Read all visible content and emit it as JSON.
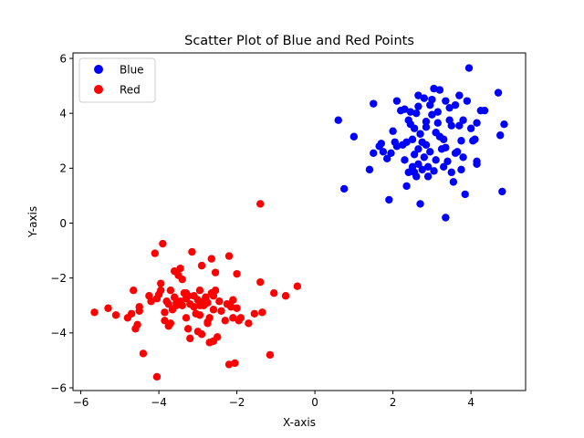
{
  "chart_data": {
    "type": "scatter",
    "title": "Scatter Plot of Blue and Red Points",
    "xlabel": "X-axis",
    "ylabel": "Y-axis",
    "xlim": [
      -6.2,
      5.4
    ],
    "ylim": [
      -6.1,
      6.2
    ],
    "xticks": [
      -6,
      -4,
      -2,
      0,
      2,
      4
    ],
    "yticks": [
      -6,
      -4,
      -2,
      0,
      2,
      4,
      6
    ],
    "grid": false,
    "legend_position": "top-left",
    "series": [
      {
        "name": "Blue",
        "color": "#0000ff",
        "points": [
          [
            0.6,
            3.75
          ],
          [
            0.75,
            1.25
          ],
          [
            1.0,
            3.15
          ],
          [
            1.4,
            1.95
          ],
          [
            1.5,
            2.55
          ],
          [
            1.5,
            4.35
          ],
          [
            1.65,
            2.8
          ],
          [
            1.7,
            2.9
          ],
          [
            1.75,
            2.6
          ],
          [
            1.85,
            2.35
          ],
          [
            1.9,
            0.85
          ],
          [
            1.95,
            2.55
          ],
          [
            2.0,
            3.35
          ],
          [
            2.05,
            2.95
          ],
          [
            2.1,
            4.45
          ],
          [
            2.1,
            2.8
          ],
          [
            2.25,
            2.85
          ],
          [
            2.3,
            4.15
          ],
          [
            2.35,
            2.95
          ],
          [
            2.35,
            1.35
          ],
          [
            2.4,
            1.85
          ],
          [
            2.4,
            3.75
          ],
          [
            2.45,
            4.05
          ],
          [
            2.5,
            2.05
          ],
          [
            2.5,
            3.05
          ],
          [
            2.55,
            3.45
          ],
          [
            2.55,
            2.5
          ],
          [
            2.6,
            1.7
          ],
          [
            2.65,
            2.15
          ],
          [
            2.65,
            2.7
          ],
          [
            2.65,
            4.25
          ],
          [
            2.65,
            4.65
          ],
          [
            2.7,
            0.7
          ],
          [
            2.7,
            3.25
          ],
          [
            2.75,
            1.95
          ],
          [
            2.8,
            4.55
          ],
          [
            2.85,
            3.7
          ],
          [
            2.85,
            3.5
          ],
          [
            2.85,
            2.85
          ],
          [
            2.9,
            2.05
          ],
          [
            2.95,
            4.3
          ],
          [
            2.95,
            2.6
          ],
          [
            3.0,
            4.5
          ],
          [
            3.05,
            4.9
          ],
          [
            3.05,
            1.9
          ],
          [
            3.1,
            2.3
          ],
          [
            3.15,
            3.65
          ],
          [
            3.15,
            4.05
          ],
          [
            3.2,
            4.85
          ],
          [
            3.2,
            3.15
          ],
          [
            3.25,
            2.7
          ],
          [
            3.3,
            3.05
          ],
          [
            3.3,
            2.05
          ],
          [
            3.35,
            0.2
          ],
          [
            3.35,
            4.45
          ],
          [
            3.4,
            2.25
          ],
          [
            3.45,
            3.75
          ],
          [
            3.45,
            4.2
          ],
          [
            3.5,
            1.85
          ],
          [
            3.5,
            3.55
          ],
          [
            3.55,
            1.5
          ],
          [
            3.6,
            4.3
          ],
          [
            3.65,
            2.6
          ],
          [
            3.7,
            3.55
          ],
          [
            3.7,
            4.65
          ],
          [
            3.75,
            3.0
          ],
          [
            3.75,
            1.95
          ],
          [
            3.8,
            3.75
          ],
          [
            3.8,
            2.4
          ],
          [
            3.85,
            1.05
          ],
          [
            3.9,
            4.45
          ],
          [
            3.95,
            5.65
          ],
          [
            4.0,
            3.45
          ],
          [
            4.05,
            3.0
          ],
          [
            4.1,
            3.05
          ],
          [
            4.15,
            3.65
          ],
          [
            4.15,
            2.25
          ],
          [
            4.15,
            2.15
          ],
          [
            4.25,
            4.1
          ],
          [
            4.35,
            4.1
          ],
          [
            4.7,
            4.75
          ],
          [
            4.75,
            3.2
          ],
          [
            4.8,
            1.15
          ],
          [
            4.85,
            3.6
          ],
          [
            2.2,
            4.1
          ],
          [
            2.45,
            3.6
          ],
          [
            2.6,
            4.0
          ],
          [
            3.0,
            3.95
          ],
          [
            2.8,
            2.4
          ],
          [
            2.3,
            2.3
          ],
          [
            2.55,
            1.85
          ],
          [
            3.35,
            2.75
          ],
          [
            3.6,
            2.55
          ],
          [
            2.9,
            1.7
          ],
          [
            3.1,
            3.3
          ],
          [
            2.75,
            2.95
          ]
        ]
      },
      {
        "name": "Red",
        "color": "#ff0000",
        "points": [
          [
            -5.65,
            -3.25
          ],
          [
            -5.3,
            -3.1
          ],
          [
            -5.1,
            -3.35
          ],
          [
            -4.8,
            -3.45
          ],
          [
            -4.7,
            -3.3
          ],
          [
            -4.65,
            -2.45
          ],
          [
            -4.6,
            -3.85
          ],
          [
            -4.55,
            -3.7
          ],
          [
            -4.5,
            -3.05
          ],
          [
            -4.5,
            -3.2
          ],
          [
            -4.4,
            -4.75
          ],
          [
            -4.2,
            -2.85
          ],
          [
            -4.1,
            -1.1
          ],
          [
            -4.05,
            -5.6
          ],
          [
            -4.05,
            -2.75
          ],
          [
            -3.95,
            -2.2
          ],
          [
            -3.95,
            -2.45
          ],
          [
            -3.9,
            -0.75
          ],
          [
            -3.85,
            -3.25
          ],
          [
            -3.85,
            -3.55
          ],
          [
            -3.8,
            -2.85
          ],
          [
            -3.75,
            -3.75
          ],
          [
            -3.75,
            -2.95
          ],
          [
            -3.7,
            -3.65
          ],
          [
            -3.7,
            -2.45
          ],
          [
            -3.65,
            -3.15
          ],
          [
            -3.6,
            -1.75
          ],
          [
            -3.55,
            -2.9
          ],
          [
            -3.5,
            -1.9
          ],
          [
            -3.45,
            -1.65
          ],
          [
            -3.4,
            -2.05
          ],
          [
            -3.4,
            -3.0
          ],
          [
            -3.35,
            -2.55
          ],
          [
            -3.3,
            -3.45
          ],
          [
            -3.3,
            -2.75
          ],
          [
            -3.25,
            -3.85
          ],
          [
            -3.2,
            -4.2
          ],
          [
            -3.2,
            -2.95
          ],
          [
            -3.15,
            -1.05
          ],
          [
            -3.1,
            -2.65
          ],
          [
            -3.05,
            -3.3
          ],
          [
            -3.0,
            -3.95
          ],
          [
            -2.95,
            -2.45
          ],
          [
            -2.95,
            -3.0
          ],
          [
            -2.9,
            -1.55
          ],
          [
            -2.9,
            -4.05
          ],
          [
            -2.85,
            -2.85
          ],
          [
            -2.8,
            -2.75
          ],
          [
            -2.75,
            -3.6
          ],
          [
            -2.75,
            -3.65
          ],
          [
            -2.7,
            -3.45
          ],
          [
            -2.7,
            -4.35
          ],
          [
            -2.65,
            -1.3
          ],
          [
            -2.65,
            -2.55
          ],
          [
            -2.6,
            -4.3
          ],
          [
            -2.6,
            -3.15
          ],
          [
            -2.55,
            -2.45
          ],
          [
            -2.55,
            -1.8
          ],
          [
            -2.5,
            -4.15
          ],
          [
            -2.45,
            -2.85
          ],
          [
            -2.3,
            -3.55
          ],
          [
            -2.25,
            -2.95
          ],
          [
            -2.2,
            -5.15
          ],
          [
            -2.2,
            -1.2
          ],
          [
            -2.1,
            -2.8
          ],
          [
            -2.1,
            -3.45
          ],
          [
            -2.05,
            -5.1
          ],
          [
            -2.0,
            -1.85
          ],
          [
            -2.0,
            -3.1
          ],
          [
            -1.95,
            -3.55
          ],
          [
            -1.9,
            -3.45
          ],
          [
            -1.7,
            -3.65
          ],
          [
            -1.55,
            -3.3
          ],
          [
            -1.4,
            -2.15
          ],
          [
            -1.4,
            0.7
          ],
          [
            -1.35,
            -3.25
          ],
          [
            -1.15,
            -4.8
          ],
          [
            -1.05,
            -2.55
          ],
          [
            -0.75,
            -2.65
          ],
          [
            -0.45,
            -2.3
          ],
          [
            -3.45,
            -2.85
          ],
          [
            -3.1,
            -3.05
          ],
          [
            -3.25,
            -2.65
          ],
          [
            -2.85,
            -3.0
          ],
          [
            -2.95,
            -3.35
          ],
          [
            -2.8,
            -2.7
          ],
          [
            -3.0,
            -2.8
          ],
          [
            -3.6,
            -2.7
          ],
          [
            -2.75,
            -2.9
          ],
          [
            -2.6,
            -2.65
          ],
          [
            -4.0,
            -2.6
          ],
          [
            -2.4,
            -3.2
          ],
          [
            -3.55,
            -3.0
          ],
          [
            -4.25,
            -2.65
          ],
          [
            -2.15,
            -3.05
          ],
          [
            -3.3,
            -2.55
          ]
        ]
      }
    ]
  }
}
